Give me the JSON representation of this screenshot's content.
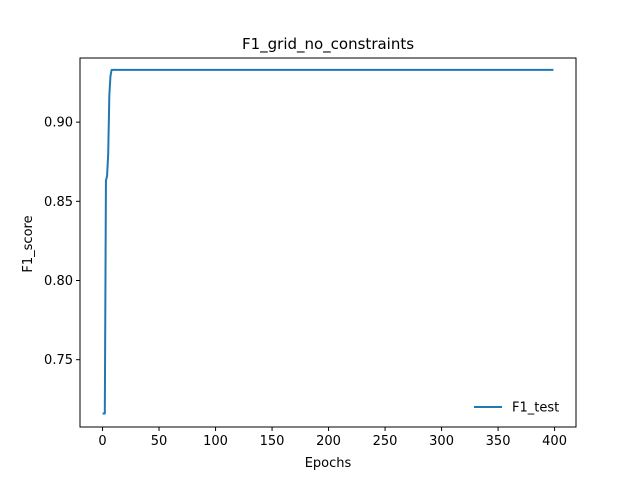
{
  "chart_data": {
    "type": "line",
    "title": "F1_grid_no_constraints",
    "xlabel": "Epochs",
    "ylabel": "F1_score",
    "xlim": [
      -19.95,
      418.95
    ],
    "ylim": [
      0.7075,
      0.9405
    ],
    "xticks": [
      0,
      50,
      100,
      150,
      200,
      250,
      300,
      350,
      400
    ],
    "yticks": [
      0.75,
      0.8,
      0.85,
      0.9
    ],
    "ytick_labels": [
      "0.75",
      "0.80",
      "0.85",
      "0.90"
    ],
    "grid": false,
    "legend_position": "lower-right",
    "series": [
      {
        "name": "F1_test",
        "color": "#1f77b4",
        "x": [
          0,
          1,
          2,
          3,
          4,
          5,
          6,
          7,
          8,
          9,
          10,
          20,
          50,
          100,
          150,
          200,
          250,
          300,
          350,
          399
        ],
        "y": [
          0.716,
          0.716,
          0.716,
          0.863,
          0.866,
          0.88,
          0.917,
          0.929,
          0.933,
          0.933,
          0.933,
          0.933,
          0.933,
          0.933,
          0.933,
          0.933,
          0.933,
          0.933,
          0.933,
          0.933
        ]
      }
    ]
  }
}
